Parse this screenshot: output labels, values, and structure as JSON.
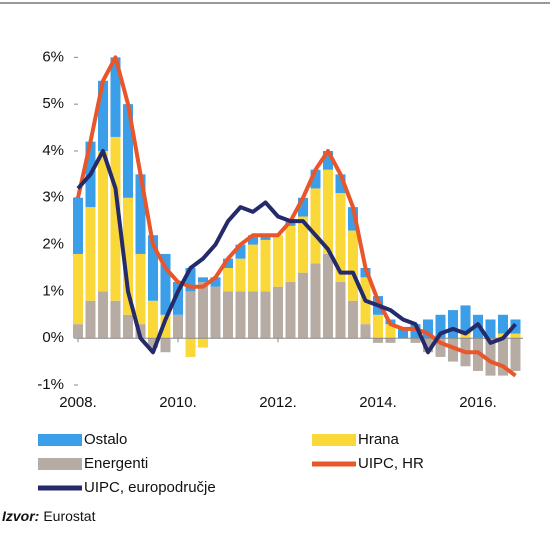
{
  "chart_data": {
    "type": "stacked_bar_line",
    "x": [
      2008.0,
      2008.25,
      2008.5,
      2008.75,
      2009.0,
      2009.25,
      2009.5,
      2009.75,
      2010.0,
      2010.25,
      2010.5,
      2010.75,
      2011.0,
      2011.25,
      2011.5,
      2011.75,
      2012.0,
      2012.25,
      2012.5,
      2012.75,
      2013.0,
      2013.25,
      2013.5,
      2013.75,
      2014.0,
      2014.25,
      2014.5,
      2014.75,
      2015.0,
      2015.25,
      2015.5,
      2015.75,
      2016.0,
      2016.25,
      2016.5,
      2016.75
    ],
    "series": [
      {
        "name": "Energenti",
        "color": "#b7aca4",
        "kind": "bar",
        "values": [
          0.3,
          0.8,
          1.0,
          0.8,
          0.5,
          0.3,
          -0.2,
          -0.3,
          0.5,
          1.0,
          1.2,
          1.1,
          1.0,
          1.0,
          1.0,
          1.0,
          1.1,
          1.2,
          1.4,
          1.6,
          1.8,
          1.2,
          0.8,
          0.3,
          -0.1,
          -0.1,
          0.0,
          -0.1,
          -0.3,
          -0.4,
          -0.5,
          -0.6,
          -0.7,
          -0.8,
          -0.8,
          -0.7
        ]
      },
      {
        "name": "Hrana",
        "color": "#fbd83a",
        "kind": "bar",
        "values": [
          1.5,
          2.0,
          3.0,
          3.5,
          2.5,
          1.5,
          0.8,
          0.5,
          0.0,
          -0.4,
          -0.2,
          0.0,
          0.5,
          0.7,
          1.0,
          1.1,
          1.1,
          1.2,
          1.2,
          1.6,
          1.8,
          1.9,
          1.5,
          1.0,
          0.5,
          0.3,
          0.0,
          0.0,
          0.0,
          0.0,
          0.0,
          0.1,
          0.0,
          0.0,
          0.1,
          0.1
        ]
      },
      {
        "name": "Ostalo",
        "color": "#3a9ee8",
        "kind": "bar",
        "values": [
          1.2,
          1.4,
          1.5,
          1.7,
          2.0,
          1.7,
          1.4,
          1.3,
          0.7,
          0.5,
          0.1,
          0.2,
          0.2,
          0.3,
          0.2,
          0.1,
          0.0,
          0.1,
          0.4,
          0.4,
          0.4,
          0.4,
          0.5,
          0.2,
          0.4,
          0.1,
          0.2,
          0.3,
          0.4,
          0.5,
          0.6,
          0.6,
          0.5,
          0.4,
          0.4,
          0.3
        ]
      },
      {
        "name": "UIPC, HR",
        "color": "#e8562a",
        "kind": "line",
        "values": [
          3.0,
          4.2,
          5.5,
          6.0,
          5.0,
          3.5,
          2.0,
          1.5,
          1.2,
          1.1,
          1.1,
          1.3,
          1.7,
          2.0,
          2.2,
          2.2,
          2.2,
          2.5,
          3.0,
          3.6,
          4.0,
          3.5,
          2.8,
          1.5,
          0.8,
          0.3,
          0.2,
          0.2,
          0.1,
          -0.1,
          -0.2,
          -0.3,
          -0.3,
          -0.5,
          -0.6,
          -0.8
        ]
      },
      {
        "name": "UIPC, europodručje",
        "color": "#242a6a",
        "kind": "line",
        "values": [
          3.2,
          3.5,
          4.0,
          3.2,
          1.0,
          0.0,
          -0.3,
          0.4,
          1.0,
          1.5,
          1.7,
          2.0,
          2.5,
          2.8,
          2.7,
          2.9,
          2.6,
          2.5,
          2.5,
          2.2,
          1.9,
          1.4,
          1.4,
          0.8,
          0.7,
          0.6,
          0.4,
          0.3,
          -0.3,
          0.1,
          0.2,
          0.1,
          0.3,
          -0.1,
          0.0,
          0.3
        ]
      }
    ],
    "xlim": [
      2008,
      2016.9
    ],
    "ylim": [
      -1,
      6.2
    ],
    "xticks": [
      {
        "value": 2008,
        "label": "2008."
      },
      {
        "value": 2010,
        "label": "2010."
      },
      {
        "value": 2012,
        "label": "2012."
      },
      {
        "value": 2014,
        "label": "2014."
      },
      {
        "value": 2016,
        "label": "2016."
      }
    ],
    "yticks": [
      {
        "value": -1,
        "label": "-1%"
      },
      {
        "value": 0,
        "label": "0%"
      },
      {
        "value": 1,
        "label": "1%"
      },
      {
        "value": 2,
        "label": "2%"
      },
      {
        "value": 3,
        "label": "3%"
      },
      {
        "value": 4,
        "label": "4%"
      },
      {
        "value": 5,
        "label": "5%"
      },
      {
        "value": 6,
        "label": "6%"
      }
    ],
    "grid": false,
    "source": {
      "label": "Izvor:",
      "text": "Eurostat"
    }
  }
}
